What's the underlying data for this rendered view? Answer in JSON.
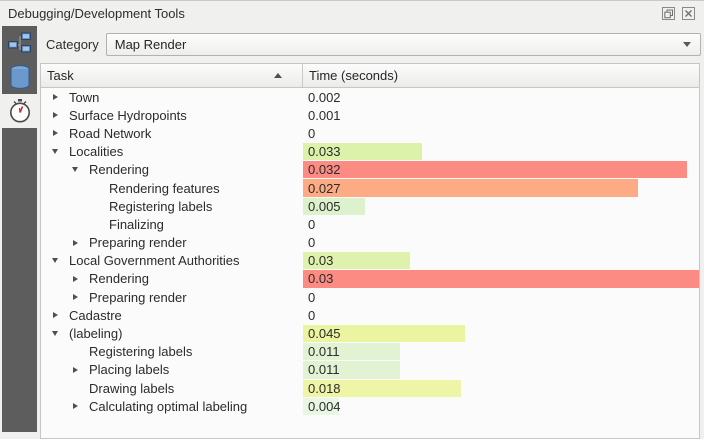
{
  "window": {
    "title": "Debugging/Development Tools",
    "buttons": [
      {
        "icon": "float-window-icon"
      },
      {
        "icon": "close-icon"
      }
    ]
  },
  "sidebar": {
    "tabs": [
      {
        "icon": "network-icon",
        "selected": false
      },
      {
        "icon": "database-icon",
        "selected": false
      },
      {
        "icon": "stopwatch-icon",
        "selected": true
      }
    ]
  },
  "toolbar": {
    "category_label": "Category",
    "category_value": "Map Render"
  },
  "table": {
    "columns": [
      {
        "label": "Task",
        "sort": "ascending"
      },
      {
        "label": "Time (seconds)",
        "sort": null
      }
    ],
    "rows": [
      {
        "label": "Town",
        "time": "0.002",
        "level": 1,
        "expander": "collapsed",
        "bar": null
      },
      {
        "label": "Surface Hydropoints",
        "time": "0.001",
        "level": 1,
        "expander": "collapsed",
        "bar": null
      },
      {
        "label": "Road Network",
        "time": "0",
        "level": 1,
        "expander": "collapsed",
        "bar": null
      },
      {
        "label": "Localities",
        "time": "0.033",
        "level": 1,
        "expander": "expanded",
        "bar": {
          "fraction": 0.3,
          "color": "#dcf2aa"
        }
      },
      {
        "label": "Rendering",
        "time": "0.032",
        "level": 2,
        "expander": "expanded",
        "bar": {
          "fraction": 0.97,
          "color": "#fb8b83"
        }
      },
      {
        "label": "Rendering features",
        "time": "0.027",
        "level": 3,
        "expander": null,
        "bar": {
          "fraction": 0.845,
          "color": "#fdab85"
        }
      },
      {
        "label": "Registering labels",
        "time": "0.005",
        "level": 3,
        "expander": null,
        "bar": {
          "fraction": 0.156,
          "color": "#ddf2cc"
        }
      },
      {
        "label": "Finalizing",
        "time": "0",
        "level": 3,
        "expander": null,
        "bar": null
      },
      {
        "label": "Preparing render",
        "time": "0",
        "level": 2,
        "expander": "collapsed",
        "bar": null
      },
      {
        "label": "Local Government Authorities",
        "time": "0.03",
        "level": 1,
        "expander": "expanded",
        "bar": {
          "fraction": 0.27,
          "color": "#def2ae"
        }
      },
      {
        "label": "Rendering",
        "time": "0.03",
        "level": 2,
        "expander": "collapsed",
        "bar": {
          "fraction": 1.0,
          "color": "#fb8b83"
        }
      },
      {
        "label": "Preparing render",
        "time": "0",
        "level": 2,
        "expander": "collapsed",
        "bar": null
      },
      {
        "label": "Cadastre",
        "time": "0",
        "level": 1,
        "expander": "collapsed",
        "bar": null
      },
      {
        "label": "(labeling)",
        "time": "0.045",
        "level": 1,
        "expander": "expanded",
        "bar": {
          "fraction": 0.41,
          "color": "#ebf5a1"
        }
      },
      {
        "label": "Registering labels",
        "time": "0.011",
        "level": 2,
        "expander": null,
        "bar": {
          "fraction": 0.244,
          "color": "#e1f3d2"
        }
      },
      {
        "label": "Placing labels",
        "time": "0.011",
        "level": 2,
        "expander": "collapsed",
        "bar": {
          "fraction": 0.244,
          "color": "#e1f3d2"
        }
      },
      {
        "label": "Drawing labels",
        "time": "0.018",
        "level": 2,
        "expander": null,
        "bar": {
          "fraction": 0.4,
          "color": "#eef5a6"
        }
      },
      {
        "label": "Calculating optimal labeling",
        "time": "0.004",
        "level": 2,
        "expander": "collapsed",
        "bar": {
          "fraction": 0.09,
          "color": "#e9f6e4"
        }
      }
    ]
  },
  "colors": {
    "panel_background": "#f0f0ee",
    "sidebar_background": "#5d5d5d",
    "table_background": "#fbfbfb",
    "heat_low": "#e9f6e4",
    "heat_mid": "#ebf5a1",
    "heat_high": "#fb8b83"
  }
}
